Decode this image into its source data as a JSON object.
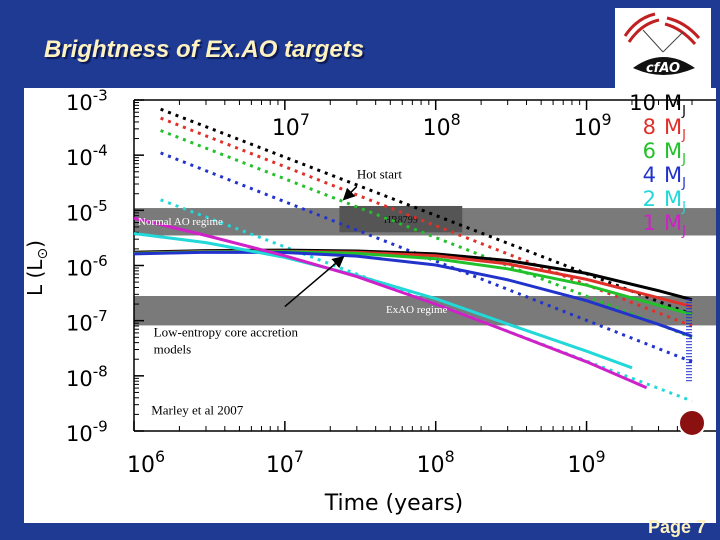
{
  "slide": {
    "title": "Brightness of Ex.AO targets",
    "page_label": "Page 7"
  },
  "chart_data": {
    "type": "line",
    "xlabel": "Time (years)",
    "ylabel": "L (L",
    "ylabel_sub": "⊙",
    "ylabel_close": ")",
    "x_scale": "log",
    "y_scale": "log",
    "xlim": [
      1000000,
      5000000000
    ],
    "ylim": [
      1e-09,
      0.001
    ],
    "x_ticks": [
      {
        "value": 1000000,
        "base": "10",
        "exp": "6"
      },
      {
        "value": 10000000,
        "base": "10",
        "exp": "7"
      },
      {
        "value": 100000000,
        "base": "10",
        "exp": "8"
      },
      {
        "value": 1000000000,
        "base": "10",
        "exp": "9"
      }
    ],
    "y_ticks": [
      {
        "value": 0.001,
        "base": "10",
        "exp": "-3"
      },
      {
        "value": 0.0001,
        "base": "10",
        "exp": "-4"
      },
      {
        "value": 1e-05,
        "base": "10",
        "exp": "-5"
      },
      {
        "value": 1e-06,
        "base": "10",
        "exp": "-6"
      },
      {
        "value": 1e-07,
        "base": "10",
        "exp": "-7"
      },
      {
        "value": 1e-08,
        "base": "10",
        "exp": "-8"
      },
      {
        "value": 1e-09,
        "base": "10",
        "exp": "-9"
      }
    ],
    "legend": [
      {
        "mass": "10",
        "unit": "M",
        "sub": "J",
        "color": "#000000"
      },
      {
        "mass": "8",
        "unit": "M",
        "sub": "J",
        "color": "#e0302a"
      },
      {
        "mass": "6",
        "unit": "M",
        "sub": "J",
        "color": "#22c02a"
      },
      {
        "mass": "4",
        "unit": "M",
        "sub": "J",
        "color": "#2233cc"
      },
      {
        "mass": "2",
        "unit": "M",
        "sub": "J",
        "color": "#22d8d8"
      },
      {
        "mass": "1",
        "unit": "M",
        "sub": "J",
        "color": "#d020c8"
      }
    ],
    "legend_position": "top-right",
    "series": [
      {
        "mass": 10,
        "model": "hot start",
        "color": "#000000",
        "x": [
          1500000,
          5000000000
        ],
        "y": [
          0.00068,
          1.3e-07
        ]
      },
      {
        "mass": 8,
        "model": "hot start",
        "color": "#e0302a",
        "x": [
          1500000,
          5000000000
        ],
        "y": [
          0.00047,
          8e-08
        ]
      },
      {
        "mass": 6,
        "model": "hot start",
        "color": "#22c02a",
        "x": [
          1500000,
          5000000000
        ],
        "y": [
          0.00028,
          5e-08
        ]
      },
      {
        "mass": 4,
        "model": "hot start",
        "color": "#2233cc",
        "x": [
          1500000,
          5000000000
        ],
        "y": [
          0.00011,
          1.8e-08
        ]
      },
      {
        "mass": 2,
        "model": "hot start",
        "color": "#22d8d8",
        "x": [
          1500000,
          5000000000
        ],
        "y": [
          1.55e-05,
          3.5e-09
        ]
      },
      {
        "mass": 10,
        "model": "core accretion",
        "color": "#000000",
        "x": [
          1000000,
          3000000,
          10000000,
          30000000,
          100000000,
          300000000,
          1000000000,
          3000000000,
          5000000000
        ],
        "y": [
          1.74e-06,
          1.86e-06,
          1.9e-06,
          1.83e-06,
          1.62e-06,
          1.23e-06,
          7.2e-07,
          3.5e-07,
          2.4e-07
        ]
      },
      {
        "mass": 8,
        "model": "core accretion",
        "color": "#e0302a",
        "x": [
          1000000,
          3000000,
          10000000,
          30000000,
          100000000,
          300000000,
          1000000000,
          3000000000,
          5000000000
        ],
        "y": [
          1.68e-06,
          1.8e-06,
          1.82e-06,
          1.74e-06,
          1.5e-06,
          1.07e-06,
          5.6e-07,
          2.6e-07,
          1.8e-07
        ]
      },
      {
        "mass": 6,
        "model": "core accretion",
        "color": "#22c02a",
        "x": [
          1000000,
          3000000,
          10000000,
          30000000,
          100000000,
          300000000,
          1000000000,
          3000000000,
          5000000000
        ],
        "y": [
          1.66e-06,
          1.78e-06,
          1.79e-06,
          1.66e-06,
          1.32e-06,
          8.7e-07,
          4.4e-07,
          1.9e-07,
          1.3e-07
        ]
      },
      {
        "mass": 4,
        "model": "core accretion",
        "color": "#2233cc",
        "x": [
          1000000,
          3000000,
          10000000,
          30000000,
          100000000,
          300000000,
          1000000000,
          3000000000,
          5000000000
        ],
        "y": [
          1.62e-06,
          1.74e-06,
          1.72e-06,
          1.48e-06,
          1.02e-06,
          5.5e-07,
          2.3e-07,
          8.6e-08,
          5.2e-08
        ]
      },
      {
        "mass": 2,
        "model": "core accretion",
        "color": "#22d8d8",
        "x": [
          1000000,
          3000000,
          10000000,
          30000000,
          100000000,
          300000000,
          1000000000,
          2000000000
        ],
        "y": [
          3.8e-06,
          2.6e-06,
          1.4e-06,
          6.6e-07,
          2.5e-07,
          8.7e-08,
          2.8e-08,
          1.4e-08
        ]
      },
      {
        "mass": 1,
        "model": "core accretion",
        "color": "#d020c8",
        "x": [
          1000000,
          3000000,
          10000000,
          30000000,
          100000000,
          300000000,
          1000000000,
          2500000000
        ],
        "y": [
          7.2e-06,
          3.5e-06,
          1.5e-06,
          6.3e-07,
          2e-07,
          6.4e-08,
          1.8e-08,
          6.1e-09
        ]
      }
    ],
    "bands": [
      {
        "label": "Normal AO regime",
        "y_range": [
          3.5e-06,
          1.1e-05
        ]
      },
      {
        "label": "ExAO regime",
        "y_range": [
          8.2e-08,
          2.8e-07
        ]
      }
    ],
    "highlight_box": {
      "label": "HR8799",
      "x_range": [
        23000000,
        150000000
      ],
      "y_range": [
        4e-06,
        1.2e-05
      ]
    },
    "annotations": [
      {
        "text": "Hot start",
        "x": 30000000,
        "y": 3.2e-05,
        "arrow_to": {
          "x": 25000000,
          "y": 1.65e-05
        }
      },
      {
        "text": "",
        "x": 10000000,
        "y": 1.8e-07,
        "arrow_to": {
          "x": 24000000,
          "y": 1.38e-06
        }
      },
      {
        "lines": [
          "Low-entropy core accretion",
          "models"
        ],
        "x": 1350000,
        "y": 5.2e-08
      },
      {
        "text": "Marley et al 2007",
        "x": 1300000,
        "y": 1.7e-09
      }
    ],
    "marker": {
      "color": "#8b1010",
      "x": 5000000000,
      "y": 1.4e-09
    }
  }
}
